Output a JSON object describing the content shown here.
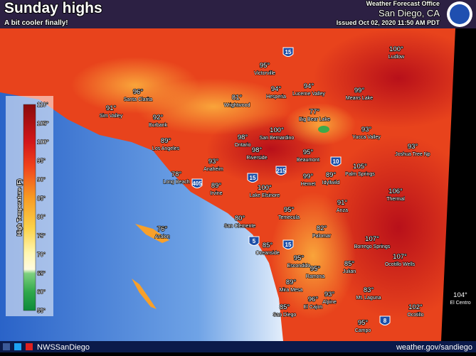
{
  "header": {
    "title": "Sunday highs",
    "subtitle": "A bit cooler finally!",
    "office": "Weather Forecast Office",
    "location": "San Diego, CA",
    "issued": "Issued Oct 02, 2020 11:50 AM PDT"
  },
  "legend": {
    "title": "High Temperature (F)",
    "labels": [
      "110°",
      "105°",
      "100°",
      "95°",
      "90°",
      "85°",
      "80°",
      "75°",
      "70°",
      "65°",
      "60°",
      "55°"
    ]
  },
  "cities": [
    {
      "temp": "100°",
      "name": "Ludlow"
    },
    {
      "temp": "95°",
      "name": "Victorville"
    },
    {
      "temp": "94°",
      "name": "Hesperia"
    },
    {
      "temp": "94°",
      "name": "Lucerne Valley"
    },
    {
      "temp": "99°",
      "name": "Means Lake"
    },
    {
      "temp": "96°",
      "name": "Santa Clarita"
    },
    {
      "temp": "91°",
      "name": "Sim Valley"
    },
    {
      "temp": "92°",
      "name": "Burbank"
    },
    {
      "temp": "81°",
      "name": "Wrightwood"
    },
    {
      "temp": "77°",
      "name": "Big Bear Lake"
    },
    {
      "temp": "93°",
      "name": "Yucca Valley"
    },
    {
      "temp": "98°",
      "name": "Ontario"
    },
    {
      "temp": "100°",
      "name": "San Bernardino"
    },
    {
      "temp": "89°",
      "name": "Los Angeles"
    },
    {
      "temp": "98°",
      "name": "Riverside"
    },
    {
      "temp": "95°",
      "name": "Beaumont"
    },
    {
      "temp": "93°",
      "name": "Joshua Tree Np"
    },
    {
      "temp": "93°",
      "name": "Anaheim"
    },
    {
      "temp": "78°",
      "name": "Long Beach"
    },
    {
      "temp": "89°",
      "name": "Irvine"
    },
    {
      "temp": "100°",
      "name": "Lake Elsinore"
    },
    {
      "temp": "99°",
      "name": "Hemet"
    },
    {
      "temp": "89°",
      "name": "Idyllwild"
    },
    {
      "temp": "105°",
      "name": "Palm Springs"
    },
    {
      "temp": "106°",
      "name": "Thermal"
    },
    {
      "temp": "76°",
      "name": "Avalon"
    },
    {
      "temp": "80°",
      "name": "San Clemente"
    },
    {
      "temp": "95°",
      "name": "Temecula"
    },
    {
      "temp": "91°",
      "name": "Anza"
    },
    {
      "temp": "82°",
      "name": "Palomar"
    },
    {
      "temp": "107°",
      "name": "Borrego Springs"
    },
    {
      "temp": "85°",
      "name": "Oceanside"
    },
    {
      "temp": "95°",
      "name": "Escondido"
    },
    {
      "temp": "95°",
      "name": "Ramona"
    },
    {
      "temp": "85°",
      "name": "Julian"
    },
    {
      "temp": "107°",
      "name": "Ocotillo Wells"
    },
    {
      "temp": "89°",
      "name": "Mira Mesa"
    },
    {
      "temp": "96°",
      "name": "El Cajon"
    },
    {
      "temp": "93°",
      "name": "Alpine"
    },
    {
      "temp": "83°",
      "name": "Mt. Laguna"
    },
    {
      "temp": "85°",
      "name": "San Diego"
    },
    {
      "temp": "102°",
      "name": "Ocotillo"
    },
    {
      "temp": "104°",
      "name": "El Centro"
    },
    {
      "temp": "95°",
      "name": "Campo"
    }
  ],
  "highways": [
    "15",
    "10",
    "215",
    "15",
    "405",
    "15",
    "5",
    "8"
  ],
  "footer": {
    "handle": "NWSSanDiego",
    "url": "weather.gov/sandiego"
  }
}
